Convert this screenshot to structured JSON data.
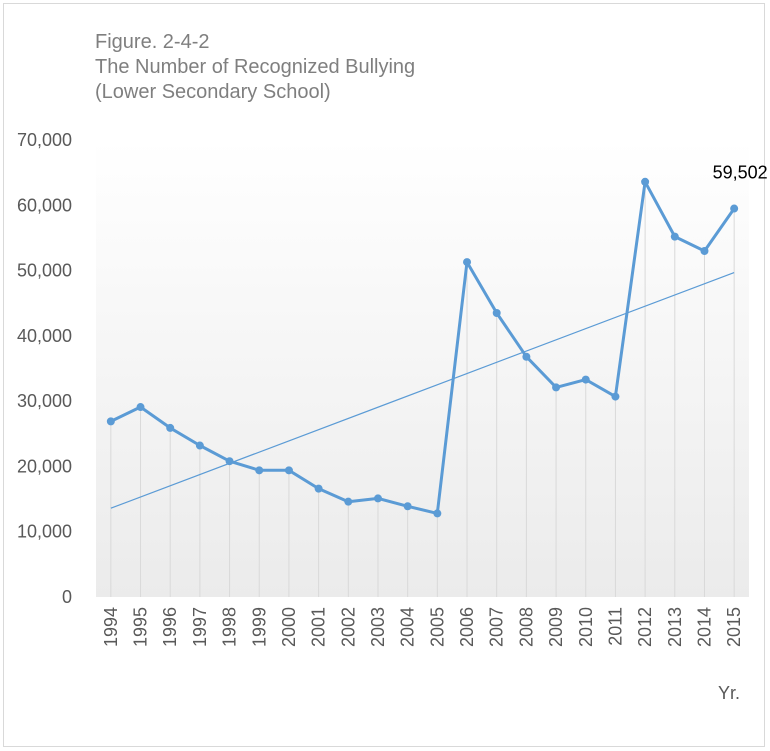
{
  "title": {
    "line1": "Figure. 2-4-2",
    "line2": "The Number of Recognized Bullying",
    "line3": "(Lower Secondary School)"
  },
  "x_unit": "Yr.",
  "colors": {
    "series": "#5b9bd5",
    "trend": "#5b9bd5",
    "drop_lines": "#d9d9d9",
    "tick_text": "#595959",
    "title_text": "#7f7f7f"
  },
  "chart_data": {
    "type": "line",
    "x": [
      "1994",
      "1995",
      "1996",
      "1997",
      "1998",
      "1999",
      "2000",
      "2001",
      "2002",
      "2003",
      "2004",
      "2005",
      "2006",
      "2007",
      "2008",
      "2009",
      "2010",
      "2011",
      "2012",
      "2013",
      "2014",
      "2015"
    ],
    "series": [
      {
        "values": [
          26900,
          29100,
          25900,
          23200,
          20800,
          19400,
          19400,
          16600,
          14600,
          15100,
          13900,
          12800,
          51300,
          43500,
          36800,
          32100,
          33300,
          30700,
          63600,
          55200,
          53000,
          59502
        ]
      }
    ],
    "trendline": {
      "type": "linear",
      "start": 13600,
      "end": 49700
    },
    "data_labels": [
      {
        "x": "2015",
        "text": "59,502"
      }
    ],
    "y_ticks": [
      "0",
      "10,000",
      "20,000",
      "30,000",
      "40,000",
      "50,000",
      "60,000",
      "70,000"
    ],
    "ylim": [
      0,
      70000
    ],
    "drop_lines": true,
    "legend": "none",
    "xlabel": "Yr.",
    "ylabel": ""
  }
}
